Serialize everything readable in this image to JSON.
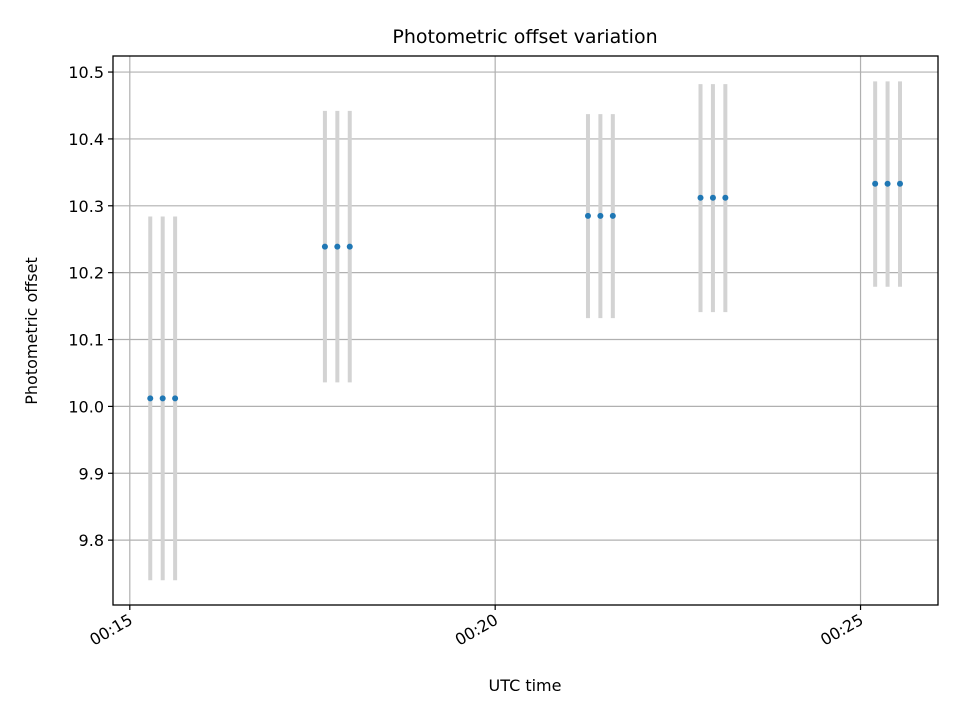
{
  "chart_data": {
    "type": "scatter",
    "title": "Photometric offset variation",
    "xlabel": "UTC time",
    "ylabel": "Photometric offset",
    "x_ticks": [
      "00:15",
      "00:20",
      "00:25"
    ],
    "x_tick_values_min": [
      15,
      20,
      25
    ],
    "xlim_min": [
      14.77,
      26.06
    ],
    "y_ticks": [
      "9.8",
      "9.9",
      "10.0",
      "10.1",
      "10.2",
      "10.3",
      "10.4",
      "10.5"
    ],
    "y_tick_values": [
      9.8,
      9.9,
      10.0,
      10.1,
      10.2,
      10.3,
      10.4,
      10.5
    ],
    "ylim": [
      9.703,
      10.524
    ],
    "grid": true,
    "marker_color": "#1f77b4",
    "errorbar_color": "#d3d3d3",
    "series": [
      {
        "points": [
          {
            "x_min": 15.28,
            "y": 10.012,
            "ylow": 9.74,
            "yhigh": 10.284
          },
          {
            "x_min": 15.45,
            "y": 10.012,
            "ylow": 9.74,
            "yhigh": 10.284
          },
          {
            "x_min": 15.62,
            "y": 10.012,
            "ylow": 9.74,
            "yhigh": 10.284
          },
          {
            "x_min": 17.67,
            "y": 10.239,
            "ylow": 10.036,
            "yhigh": 10.442
          },
          {
            "x_min": 17.84,
            "y": 10.239,
            "ylow": 10.036,
            "yhigh": 10.442
          },
          {
            "x_min": 18.01,
            "y": 10.239,
            "ylow": 10.036,
            "yhigh": 10.442
          },
          {
            "x_min": 21.27,
            "y": 10.285,
            "ylow": 10.132,
            "yhigh": 10.437
          },
          {
            "x_min": 21.44,
            "y": 10.285,
            "ylow": 10.132,
            "yhigh": 10.437
          },
          {
            "x_min": 21.61,
            "y": 10.285,
            "ylow": 10.132,
            "yhigh": 10.437
          },
          {
            "x_min": 22.81,
            "y": 10.312,
            "ylow": 10.141,
            "yhigh": 10.482
          },
          {
            "x_min": 22.98,
            "y": 10.312,
            "ylow": 10.141,
            "yhigh": 10.482
          },
          {
            "x_min": 23.15,
            "y": 10.312,
            "ylow": 10.141,
            "yhigh": 10.482
          },
          {
            "x_min": 25.2,
            "y": 10.333,
            "ylow": 10.179,
            "yhigh": 10.486
          },
          {
            "x_min": 25.37,
            "y": 10.333,
            "ylow": 10.179,
            "yhigh": 10.486
          },
          {
            "x_min": 25.54,
            "y": 10.333,
            "ylow": 10.179,
            "yhigh": 10.486
          }
        ]
      }
    ]
  }
}
